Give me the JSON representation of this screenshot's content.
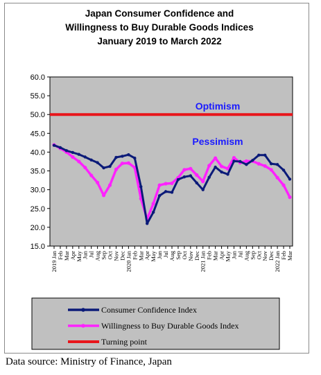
{
  "chart_data": {
    "type": "line",
    "title_lines": [
      "Japan Consumer Confidence and",
      "Willingness to Buy Durable Goods Indices",
      "January 2019 to March 2022"
    ],
    "ylim": [
      15.0,
      60.0
    ],
    "y_ticks": [
      "15.0",
      "20.0",
      "25.0",
      "30.0",
      "35.0",
      "40.0",
      "45.0",
      "50.0",
      "55.0",
      "60.0"
    ],
    "x_labels": [
      "2019 Jan",
      "Feb",
      "Mar",
      "Apr",
      "May",
      "Jun",
      "Jul",
      "Aug",
      "Sep",
      "Oct",
      "Nov",
      "Dec",
      "2020 Jan",
      "Feb",
      "Mar",
      "Apr",
      "May",
      "Jun",
      "Jul",
      "Aug",
      "Sep",
      "Oct",
      "Nov",
      "Dec",
      "2021 Jan",
      "Feb",
      "Mar",
      "Apr",
      "May",
      "Jun",
      "Jul",
      "Aug",
      "Sep",
      "Oct",
      "Nov",
      "Dec",
      "2022 Jan",
      "Feb",
      "Mar"
    ],
    "series": [
      {
        "name": "Consumer Confidence Index",
        "color": "#0b1a78",
        "values": [
          41.8,
          41.2,
          40.4,
          39.9,
          39.4,
          38.7,
          37.9,
          37.2,
          35.8,
          36.2,
          38.6,
          38.9,
          39.3,
          38.4,
          30.8,
          21.0,
          24.0,
          28.4,
          29.5,
          29.3,
          32.7,
          33.4,
          33.7,
          31.8,
          30.0,
          33.3,
          36.0,
          34.7,
          34.1,
          37.6,
          37.5,
          36.7,
          37.8,
          39.2,
          39.2,
          36.9,
          36.7,
          35.2,
          32.8
        ]
      },
      {
        "name": "Willingness to Buy Durable Goods Index",
        "color": "#ff22ff",
        "values": [
          41.9,
          41.0,
          40.0,
          38.7,
          37.5,
          35.9,
          33.8,
          31.9,
          28.5,
          31.2,
          35.4,
          37.0,
          37.1,
          35.9,
          27.6,
          22.2,
          26.3,
          31.2,
          31.6,
          31.7,
          33.2,
          35.3,
          35.6,
          33.9,
          32.2,
          36.4,
          38.4,
          36.2,
          35.6,
          38.5,
          37.2,
          37.6,
          37.6,
          36.9,
          36.3,
          35.3,
          33.2,
          31.2,
          28.0
        ]
      },
      {
        "name": "Turning point",
        "color": "#e8151b",
        "values": [
          50.0,
          50.0
        ]
      }
    ],
    "annotations": [
      "Optimism",
      "Pessimism"
    ],
    "grid": false,
    "legend_position": "bottom"
  },
  "source_text": "Data source: Ministry of Finance, Japan"
}
